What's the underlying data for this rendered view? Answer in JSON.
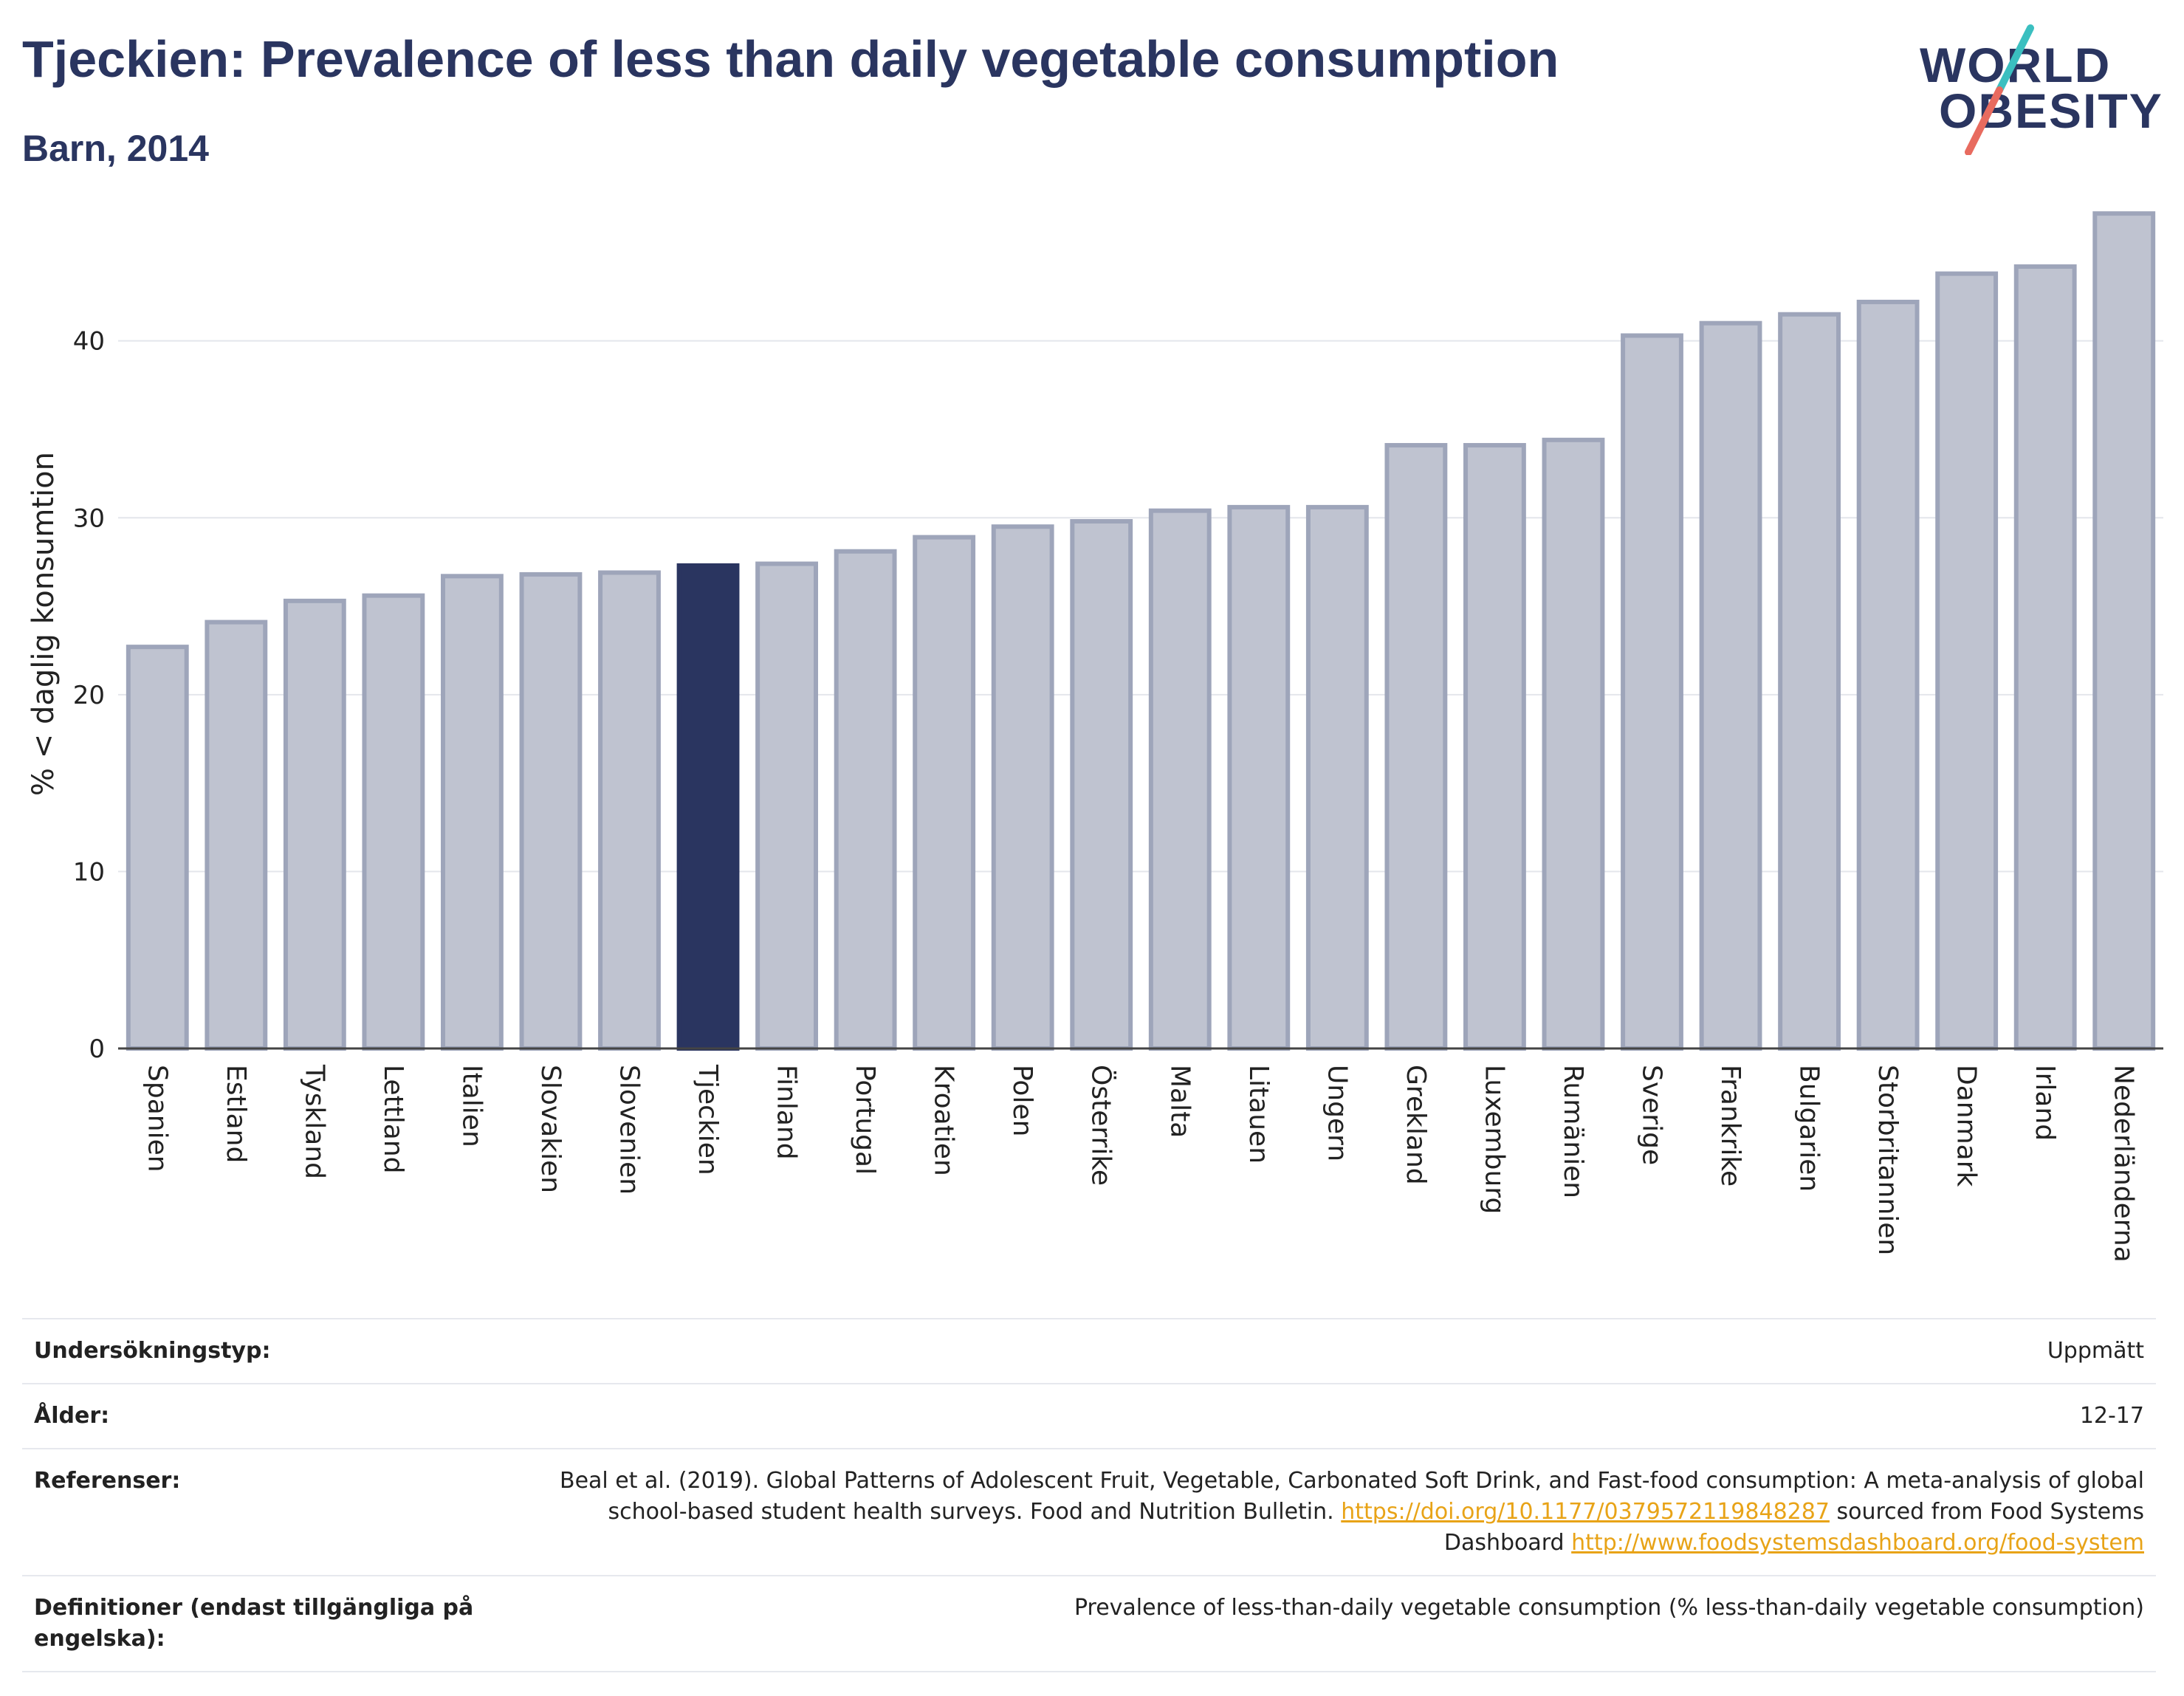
{
  "header": {
    "title": "Tjeckien: Prevalence of less than daily vegetable consumption",
    "subtitle": "Barn, 2014"
  },
  "logo": {
    "line1": "WORLD",
    "line2": "OBESITY"
  },
  "colors": {
    "highlight": "#2a3560",
    "bar_fill": "#bfc3d0",
    "bar_stroke": "#9ea5ba",
    "gridline": "#e4e6ec",
    "logo_teal": "#3bbfc0",
    "logo_red": "#e86b5f"
  },
  "chart_data": {
    "type": "bar",
    "title": "Tjeckien: Prevalence of less than daily vegetable consumption",
    "subtitle": "Barn, 2014",
    "ylabel": "% < daglig konsumtion",
    "xlabel": "",
    "ylim": [
      0,
      48
    ],
    "yticks": [
      0,
      10,
      20,
      30,
      40
    ],
    "grid": true,
    "highlight": "Tjeckien",
    "categories": [
      "Spanien",
      "Estland",
      "Tyskland",
      "Lettland",
      "Italien",
      "Slovakien",
      "Slovenien",
      "Tjeckien",
      "Finland",
      "Portugal",
      "Kroatien",
      "Polen",
      "Österrike",
      "Malta",
      "Litauen",
      "Ungern",
      "Grekland",
      "Luxemburg",
      "Rumänien",
      "Sverige",
      "Frankrike",
      "Bulgarien",
      "Storbritannien",
      "Danmark",
      "Irland",
      "Nederländerna"
    ],
    "values": [
      22.7,
      24.1,
      25.3,
      25.6,
      26.7,
      26.8,
      26.9,
      27.3,
      27.4,
      28.1,
      28.9,
      29.5,
      29.8,
      30.4,
      30.6,
      30.6,
      34.1,
      34.1,
      34.4,
      40.3,
      41.0,
      41.5,
      42.2,
      43.8,
      44.2,
      47.2
    ]
  },
  "meta": {
    "rows": [
      {
        "key": "Undersökningstyp:",
        "value": "Uppmätt"
      },
      {
        "key": "Ålder:",
        "value": "12-17"
      },
      {
        "key": "Referenser:",
        "value_pre": "Beal et al. (2019). Global Patterns of Adolescent Fruit, Vegetable, Carbonated Soft Drink, and Fast-food consumption: A meta-analysis of global school-based student health surveys. Food and Nutrition Bulletin.",
        "link1": "https://doi.org/10.1177/0379572119848287",
        "value_mid": "sourced from Food Systems Dashboard",
        "link2": "http://www.foodsystemsdashboard.org/food-system"
      },
      {
        "key": "Definitioner (endast tillgängliga på engelska):",
        "value": "Prevalence of less-than-daily vegetable consumption (% less-than-daily vegetable consumption)"
      }
    ]
  }
}
